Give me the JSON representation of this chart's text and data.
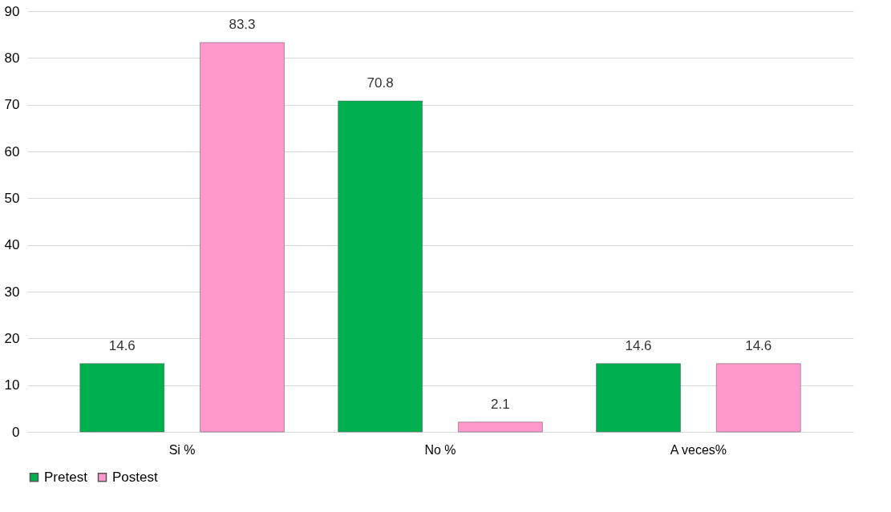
{
  "chart_data": {
    "type": "bar",
    "categories": [
      "Si %",
      "No %",
      "A veces%"
    ],
    "series": [
      {
        "name": "Pretest",
        "color": "#00b050",
        "values": [
          14.6,
          70.8,
          14.6
        ]
      },
      {
        "name": "Postest",
        "color": "#ff99cc",
        "values": [
          83.3,
          2.1,
          14.6
        ]
      }
    ],
    "ylim": [
      0,
      90
    ],
    "yticks": [
      0,
      10,
      20,
      30,
      40,
      50,
      60,
      70,
      80,
      90
    ],
    "grid": "y",
    "legend": "bottom",
    "data_labels": true
  }
}
